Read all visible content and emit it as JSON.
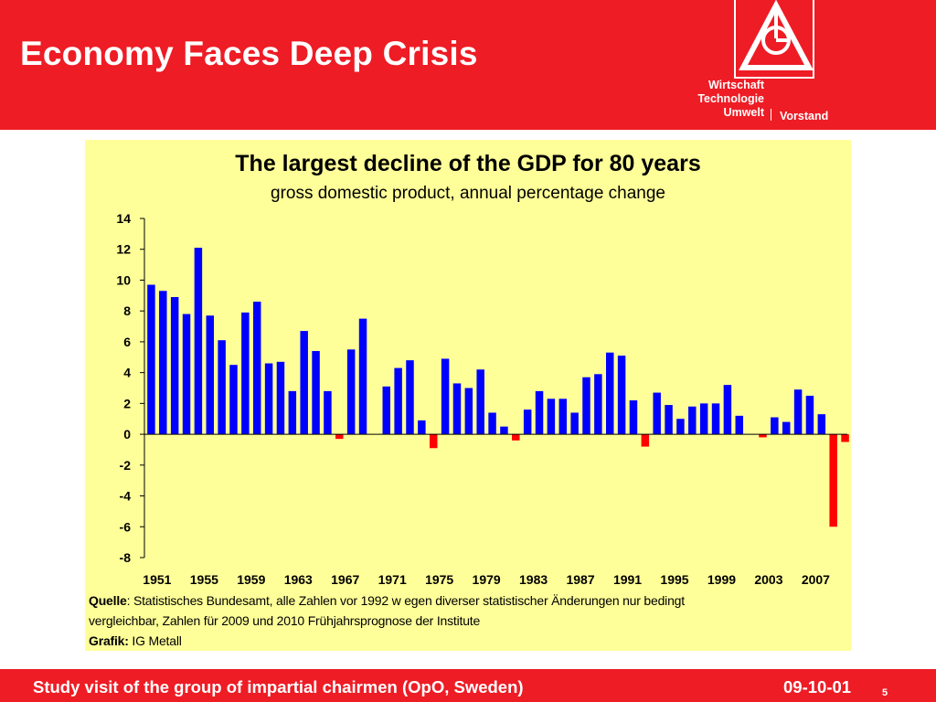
{
  "slide": {
    "title": "Economy Faces Deep Crisis",
    "dept_lines": [
      "Wirtschaft",
      "Technologie",
      "Umwelt"
    ],
    "vorstand": "Vorstand",
    "footer_text": "Study visit of the group of impartial chairmen (OpO, Sweden)",
    "footer_date": "09-10-01",
    "page_number": "5",
    "brand_color": "#ee1c25",
    "logo_letters": "IGM"
  },
  "notes": {
    "quelle_label": "Quelle",
    "quelle_text": ": Statistisches Bundesamt, alle Zahlen vor 1992 w egen diverser statistischer Änderungen nur bedingt",
    "line2": "vergleichbar, Zahlen für 2009 und 2010 Frühjahrsprognose der Institute",
    "grafik_label": "Grafik:",
    "grafik_text": " IG Metall"
  },
  "chart_data": {
    "type": "bar",
    "title": "The largest decline of the GDP for 80 years",
    "subtitle": "gross domestic product, annual percentage change",
    "xlabel": "",
    "ylabel": "",
    "ylim": [
      -8,
      14
    ],
    "yticks": [
      14,
      12,
      10,
      8,
      6,
      4,
      2,
      0,
      -2,
      -4,
      -6,
      -8
    ],
    "x_tick_labels": [
      "1951",
      "1955",
      "1959",
      "1963",
      "1967",
      "1971",
      "1975",
      "1979",
      "1983",
      "1987",
      "1991",
      "1995",
      "1999",
      "2003",
      "2007"
    ],
    "grid": false,
    "legend": "none",
    "positive_color": "#0000ff",
    "negative_color": "#ff0000",
    "categories": [
      "1951",
      "1952",
      "1953",
      "1954",
      "1955",
      "1956",
      "1957",
      "1958",
      "1959",
      "1960",
      "1961",
      "1962",
      "1963",
      "1964",
      "1965",
      "1966",
      "1967",
      "1968",
      "1969",
      "1970",
      "1971",
      "1972",
      "1973",
      "1974",
      "1975",
      "1976",
      "1977",
      "1978",
      "1979",
      "1980",
      "1981",
      "1982",
      "1983",
      "1984",
      "1985",
      "1986",
      "1987",
      "1988",
      "1989",
      "1990",
      "1991",
      "1992",
      "1993",
      "1994",
      "1995",
      "1996",
      "1997",
      "1998",
      "1999",
      "2000",
      "2001",
      "2002",
      "2003",
      "2004",
      "2005",
      "2006",
      "2007",
      "2008",
      "2009",
      "2010"
    ],
    "values": [
      9.7,
      9.3,
      8.9,
      7.8,
      12.1,
      7.7,
      6.1,
      4.5,
      7.9,
      8.6,
      4.6,
      4.7,
      2.8,
      6.7,
      5.4,
      2.8,
      -0.3,
      5.5,
      7.5,
      null,
      3.1,
      4.3,
      4.8,
      0.9,
      -0.9,
      4.9,
      3.3,
      3.0,
      4.2,
      1.4,
      0.5,
      -0.4,
      1.6,
      2.8,
      2.3,
      2.3,
      1.4,
      3.7,
      3.9,
      5.3,
      5.1,
      2.2,
      -0.8,
      2.7,
      1.9,
      1.0,
      1.8,
      2.0,
      2.0,
      3.2,
      1.2,
      0.0,
      -0.2,
      1.1,
      0.8,
      2.9,
      2.5,
      1.3,
      -6.0,
      -0.5
    ]
  }
}
